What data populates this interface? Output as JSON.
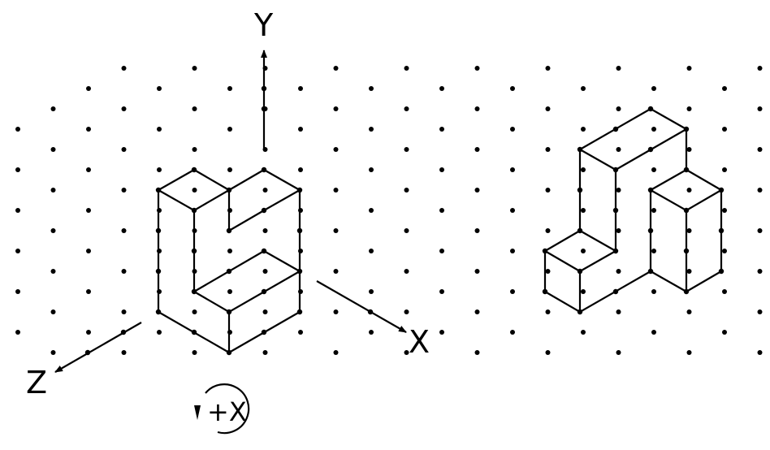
{
  "axes": {
    "y_label": "Y",
    "x_label": "X",
    "z_label": "Z"
  },
  "rotation": {
    "label": "+X"
  },
  "colors": {
    "ink": "#000000",
    "background": "#ffffff"
  }
}
